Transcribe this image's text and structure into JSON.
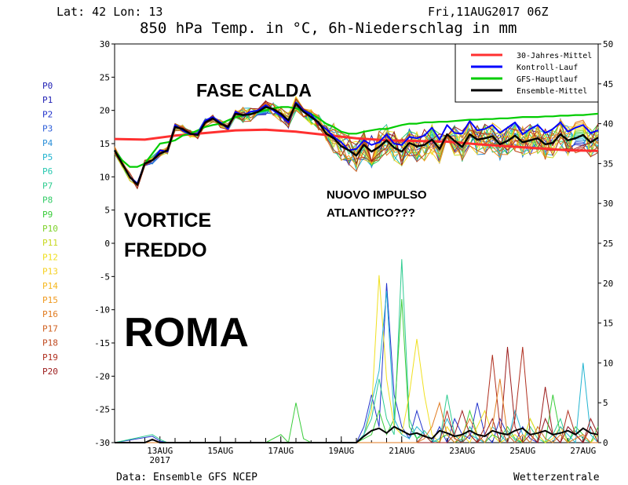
{
  "header": {
    "coords": "Lat: 42 Lon: 13",
    "run": "Fri,11AUG2017 06Z"
  },
  "footer": {
    "source": "Data: Ensemble GFS NCEP",
    "brand": "Wetterzentrale"
  },
  "annotations": {
    "fase_calda": "FASE CALDA",
    "vortice": "VORTICE",
    "freddo": "FREDDO",
    "roma": "ROMA",
    "nuovo_impulso": "NUOVO IMPULSO",
    "atlantico": "ATLANTICO???"
  },
  "colors": {
    "climatology": "#ff3030",
    "control": "#0000ff",
    "gfs_main": "#00cc00",
    "ensemble_mean": "#000000",
    "members": [
      "#1f1fb4",
      "#2233cc",
      "#2f5fd8",
      "#2a8fd8",
      "#22b4d0",
      "#27c8b0",
      "#2ecc90",
      "#33cc66",
      "#39cc3a",
      "#7fd22c",
      "#c8d820",
      "#f0e020",
      "#f5d020",
      "#f5b820",
      "#f09a20",
      "#e07b20",
      "#d06020",
      "#c04a20",
      "#b03020",
      "#9c1c1c"
    ]
  },
  "chart_data": {
    "type": "line",
    "title": "850 hPa Temp. in °C, 6h-Niederschlag in mm",
    "y_left": {
      "range": [
        -30,
        30
      ],
      "ticks": [
        "30",
        "25",
        "20",
        "15",
        "10",
        "5",
        "0",
        "-5",
        "-10",
        "-15",
        "-20",
        "-25",
        "-30"
      ]
    },
    "y_right": {
      "range": [
        0,
        50
      ],
      "ticks": [
        "50",
        "45",
        "40",
        "35",
        "30",
        "25",
        "20",
        "15",
        "10",
        "5",
        "0"
      ]
    },
    "x_range_hours": [
      0,
      384
    ],
    "x_ticks": [
      "13AUG",
      "15AUG",
      "17AUG",
      "19AUG",
      "21AUG",
      "23AUG",
      "25AUG",
      "27AUG"
    ],
    "x_tick_year": "2017",
    "legend": [
      "30-Jahres-Mittel",
      "Kontroll-Lauf",
      "GFS-Hauptlauf",
      "Ensemble-Mittel"
    ],
    "member_labels": [
      "P0",
      "P1",
      "P2",
      "P3",
      "P4",
      "P5",
      "P6",
      "P7",
      "P8",
      "P9",
      "P10",
      "P11",
      "P12",
      "P13",
      "P14",
      "P15",
      "P16",
      "P17",
      "P18",
      "P19",
      "P20"
    ],
    "series": [
      {
        "name": "30-Jahres-Mittel",
        "axis": "left",
        "x": [
          0,
          24,
          48,
          72,
          96,
          120,
          144,
          168,
          192,
          216,
          240,
          264,
          288,
          312,
          336,
          360,
          384
        ],
        "y": [
          15.7,
          15.6,
          16.2,
          16.6,
          17,
          17.1,
          16.8,
          16.3,
          15.8,
          15.5,
          15.4,
          15.3,
          14.9,
          14.6,
          14.3,
          14.0,
          13.9
        ]
      },
      {
        "name": "Ensemble-Mittel",
        "axis": "left",
        "x": [
          0,
          6,
          12,
          18,
          24,
          30,
          36,
          42,
          48,
          54,
          60,
          66,
          72,
          78,
          84,
          90,
          96,
          102,
          108,
          114,
          120,
          126,
          132,
          138,
          144,
          150,
          156,
          162,
          168,
          174,
          180,
          186,
          192,
          198,
          204,
          210,
          216,
          222,
          228,
          234,
          240,
          246,
          252,
          258,
          264,
          270,
          276,
          282,
          288,
          294,
          300,
          306,
          312,
          318,
          324,
          330,
          336,
          342,
          348,
          354,
          360,
          366,
          372,
          378,
          384
        ],
        "y": [
          14,
          12,
          10,
          8.8,
          12,
          12.5,
          13.5,
          14,
          17.5,
          17.2,
          16.5,
          16.3,
          18.2,
          18.8,
          18,
          17.5,
          19.5,
          19.3,
          19.4,
          19.8,
          20.5,
          20.2,
          19.5,
          18.5,
          21,
          19.8,
          19,
          18.2,
          16.5,
          15.8,
          14.6,
          14,
          13.2,
          14.8,
          13.8,
          14.5,
          15.5,
          14.4,
          13.8,
          15.1,
          14.6,
          14.8,
          15.6,
          14.2,
          16.4,
          15.4,
          14.5,
          16.4,
          15.6,
          15.8,
          16.1,
          14.9,
          15.4,
          16.2,
          15.2,
          15.5,
          15.8,
          14.9,
          15.1,
          16.4,
          15.5,
          15.8,
          16.3,
          15.2,
          15.9
        ]
      },
      {
        "name": "Kontroll-Lauf",
        "axis": "left",
        "x": [
          0,
          6,
          12,
          18,
          24,
          30,
          36,
          42,
          48,
          54,
          60,
          66,
          72,
          78,
          84,
          90,
          96,
          102,
          108,
          114,
          120,
          126,
          132,
          138,
          144,
          150,
          156,
          162,
          168,
          174,
          180,
          186,
          192,
          198,
          204,
          210,
          216,
          222,
          228,
          234,
          240,
          246,
          252,
          258,
          264,
          270,
          276,
          282,
          288,
          294,
          300,
          306,
          312,
          318,
          324,
          330,
          336,
          342,
          348,
          354,
          360,
          366,
          372,
          378,
          384
        ],
        "y": [
          14,
          12,
          10,
          9,
          12,
          12.5,
          14,
          13.8,
          17.8,
          17,
          16.4,
          16.5,
          18.5,
          19,
          18.2,
          17.2,
          19.8,
          19.2,
          19.8,
          20,
          20.8,
          20,
          19.2,
          18.2,
          21.2,
          20,
          19.4,
          18,
          17.2,
          16,
          15.2,
          14,
          14.2,
          15.5,
          14.8,
          15.2,
          16.4,
          15,
          14.8,
          16,
          15.8,
          16.2,
          17.4,
          15.6,
          17.8,
          16.6,
          16.5,
          18.4,
          17,
          17.2,
          17.8,
          16.6,
          17.4,
          18.2,
          16.4,
          17.2,
          17.8,
          16.6,
          17.2,
          18.2,
          16.8,
          17.4,
          17.8,
          16.6,
          17
        ]
      },
      {
        "name": "GFS-Hauptlauf",
        "axis": "left",
        "x": [
          0,
          6,
          12,
          18,
          24,
          30,
          36,
          42,
          48,
          54,
          60,
          66,
          72,
          78,
          84,
          90,
          96,
          102,
          108,
          114,
          120,
          126,
          132,
          138,
          144,
          150,
          156,
          162,
          168,
          174,
          180,
          186,
          192,
          198,
          204,
          210,
          216,
          222,
          228,
          234,
          240,
          246,
          252,
          258,
          264,
          270,
          276,
          282,
          288,
          294,
          300,
          306,
          312,
          318,
          324,
          330,
          336,
          342,
          348,
          354,
          360,
          366,
          372,
          378,
          384
        ],
        "y": [
          14,
          12.5,
          11.5,
          11.5,
          12,
          13.5,
          15,
          15.2,
          15.5,
          16.2,
          16.5,
          17,
          17.5,
          17.8,
          18,
          18.5,
          19,
          19.2,
          19.5,
          19.8,
          20,
          20.3,
          20.5,
          20.5,
          20.3,
          20,
          19.5,
          18.8,
          18,
          17.5,
          16.8,
          16.5,
          16.5,
          16.8,
          17,
          17.2,
          17.2,
          17.5,
          17.8,
          18,
          18,
          18.2,
          18.2,
          18.3,
          18.3,
          18.4,
          18.5,
          18.6,
          18.6,
          18.7,
          18.7,
          18.8,
          18.8,
          18.9,
          19,
          19,
          19,
          19.1,
          19.1,
          19.2,
          19.2,
          19.3,
          19.3,
          19.4,
          19.5
        ]
      }
    ],
    "precip_series": [
      {
        "name": "P1",
        "axis": "right",
        "x": [
          0,
          30,
          36,
          42,
          48,
          192,
          198,
          204,
          210,
          216,
          222,
          228,
          234,
          240,
          246,
          252,
          258,
          264,
          270,
          276,
          282,
          288,
          294,
          300,
          306,
          312,
          318,
          324,
          330,
          336,
          342,
          348,
          354,
          360,
          366,
          372,
          378,
          384
        ],
        "y": [
          0,
          0.8,
          0.2,
          0,
          0,
          0,
          2,
          6,
          2,
          20,
          6,
          2,
          0.5,
          4,
          1,
          0,
          2,
          0,
          3,
          1,
          0.5,
          5,
          1,
          0,
          3,
          1,
          0,
          2,
          0.5,
          0,
          3,
          1,
          0,
          2,
          1,
          0,
          3,
          1
        ]
      },
      {
        "name": "P6",
        "axis": "right",
        "x": [
          0,
          30,
          36,
          42,
          192,
          198,
          204,
          210,
          216,
          222,
          228,
          234,
          240,
          246,
          252,
          258,
          264,
          270,
          276,
          282,
          288,
          294,
          300,
          306,
          312,
          318,
          324,
          330,
          336,
          342,
          348,
          354,
          360,
          366,
          372,
          378,
          384
        ],
        "y": [
          0,
          1,
          0.4,
          0,
          0,
          1,
          3,
          8,
          3,
          1,
          23,
          3,
          0.5,
          1.5,
          0.3,
          0,
          6,
          1,
          0,
          2,
          0.5,
          0,
          1,
          0,
          1.5,
          0.3,
          0,
          2,
          0.5,
          0,
          1,
          3,
          0,
          1.5,
          0.5,
          0,
          1
        ]
      },
      {
        "name": "P10",
        "axis": "right",
        "x": [
          0,
          120,
          132,
          138,
          144,
          150,
          156,
          162,
          192,
          198,
          204,
          210,
          216,
          222,
          228,
          234,
          240,
          246,
          252,
          258,
          264,
          270,
          276,
          282,
          288,
          294,
          300,
          306,
          312,
          318,
          324,
          330,
          336,
          342,
          348,
          354,
          360,
          366,
          372,
          378,
          384
        ],
        "y": [
          0,
          0,
          1,
          0,
          5,
          0.5,
          0,
          0,
          0,
          0.5,
          1,
          4,
          1,
          3,
          18,
          2,
          0.5,
          1,
          0,
          0.5,
          1,
          0,
          0.5,
          4,
          1,
          0,
          1,
          0.5,
          2,
          0.5,
          0,
          3,
          1,
          0,
          6,
          1,
          0,
          2,
          1,
          0,
          2
        ]
      },
      {
        "name": "P12",
        "axis": "right",
        "x": [
          0,
          192,
          198,
          204,
          210,
          216,
          222,
          228,
          234,
          240,
          246,
          252,
          258,
          264,
          270,
          276,
          282,
          288,
          294,
          300,
          306,
          312,
          318,
          324,
          330,
          336,
          342,
          348,
          354,
          360,
          366,
          372,
          378,
          384
        ],
        "y": [
          0,
          0,
          1,
          4,
          21,
          8,
          2,
          1,
          6,
          13,
          6,
          1,
          0,
          2,
          0.5,
          1,
          0,
          2,
          4,
          1,
          0,
          0.5,
          1,
          0,
          3,
          1,
          0,
          0.5,
          2,
          0,
          0.5,
          1,
          0,
          1
        ]
      },
      {
        "name": "P4",
        "axis": "right",
        "x": [
          0,
          192,
          198,
          204,
          210,
          216,
          222,
          228,
          234,
          240,
          246,
          252,
          258,
          264,
          270,
          276,
          282,
          288,
          294,
          300,
          306,
          312,
          318,
          324,
          330,
          336,
          342,
          348,
          354,
          360,
          366,
          372,
          378,
          384
        ],
        "y": [
          0,
          0,
          1,
          5,
          9,
          19,
          3,
          1,
          0.5,
          2,
          1,
          0,
          0.5,
          3,
          1,
          0,
          1,
          0.5,
          0,
          2,
          1,
          0,
          4,
          1,
          0,
          2,
          0.5,
          0,
          2,
          1,
          0,
          10,
          1,
          0
        ]
      },
      {
        "name": "P18",
        "axis": "right",
        "x": [
          0,
          240,
          246,
          252,
          258,
          264,
          270,
          276,
          282,
          288,
          294,
          300,
          306,
          312,
          318,
          324,
          330,
          336,
          342,
          348,
          354,
          360,
          366,
          372,
          378,
          384
        ],
        "y": [
          0,
          0,
          1,
          0,
          0,
          4,
          0.5,
          0,
          1,
          0,
          2,
          11,
          2,
          0,
          3,
          12,
          1,
          0,
          3,
          1,
          0,
          4,
          1,
          0,
          3,
          1
        ]
      },
      {
        "name": "P20",
        "axis": "right",
        "x": [
          0,
          264,
          270,
          276,
          282,
          288,
          294,
          300,
          306,
          312,
          318,
          324,
          330,
          336,
          342,
          348,
          354,
          360,
          366,
          372,
          378,
          384
        ],
        "y": [
          0,
          0,
          1,
          4,
          1,
          0,
          1,
          3,
          0,
          12,
          2,
          0,
          1,
          0,
          7,
          1,
          0,
          2,
          1,
          0,
          2,
          0
        ]
      },
      {
        "name": "P16",
        "axis": "right",
        "x": [
          0,
          240,
          246,
          252,
          258,
          264,
          270,
          276,
          282,
          288,
          294,
          300,
          306,
          312,
          318,
          324,
          330,
          336,
          342,
          348,
          354,
          360,
          366,
          372,
          378,
          384
        ],
        "y": [
          0,
          0,
          0.5,
          2,
          5,
          1,
          0,
          1,
          3,
          1,
          0,
          2,
          8,
          1,
          0,
          1,
          0,
          2,
          0.5,
          0,
          1,
          0,
          0.5,
          1,
          0,
          0
        ]
      },
      {
        "name": "Ensemble-Mittel",
        "axis": "right",
        "x": [
          0,
          24,
          30,
          36,
          192,
          198,
          204,
          210,
          216,
          222,
          228,
          234,
          240,
          246,
          252,
          258,
          264,
          270,
          276,
          282,
          288,
          294,
          300,
          306,
          312,
          318,
          324,
          330,
          336,
          342,
          348,
          354,
          360,
          366,
          372,
          378,
          384
        ],
        "y": [
          0,
          0,
          0.4,
          0,
          0,
          0.8,
          1.5,
          1.8,
          1.2,
          2,
          1.5,
          1,
          1.2,
          0.8,
          0.5,
          1.5,
          1.2,
          0.8,
          1,
          1.5,
          1,
          0.8,
          1.5,
          1.2,
          1,
          1.5,
          1.8,
          1,
          1.2,
          1.5,
          1,
          1.2,
          1.5,
          1,
          1.8,
          1.2,
          1
        ]
      }
    ]
  }
}
